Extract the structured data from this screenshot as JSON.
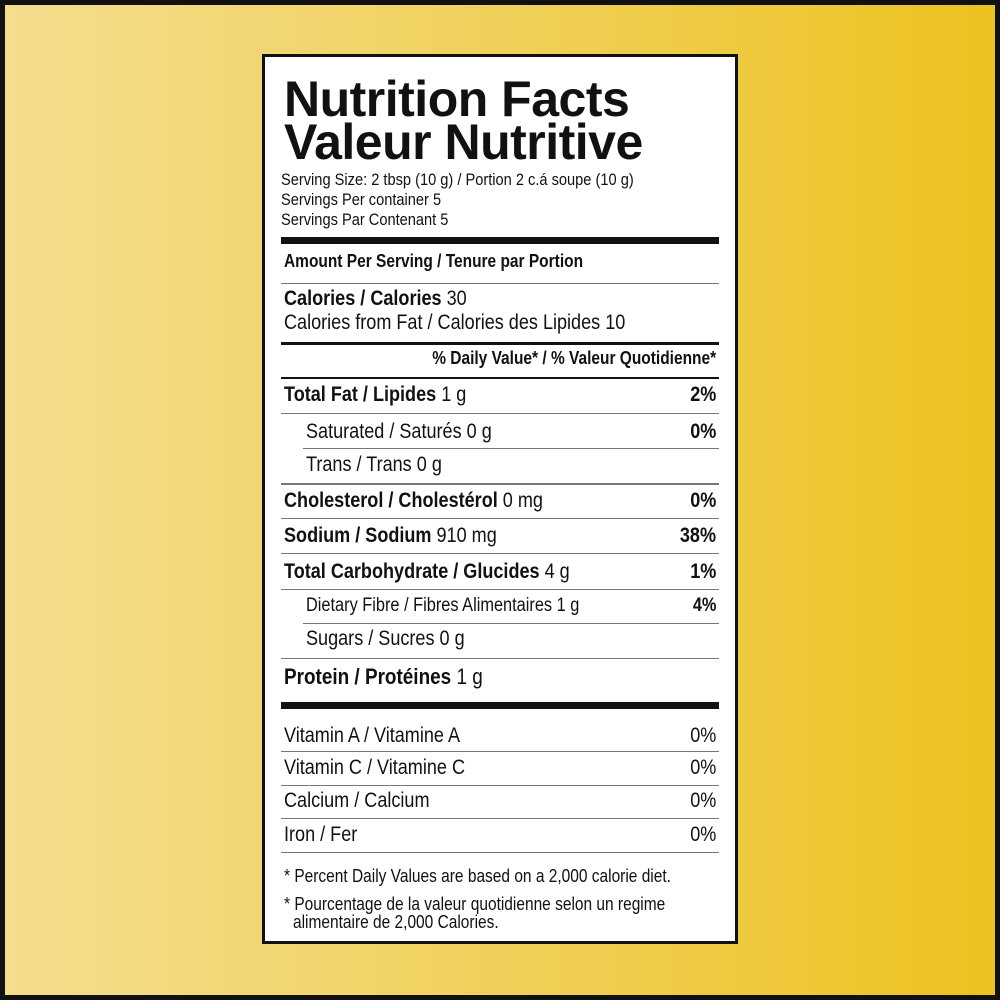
{
  "title_en": "Nutrition Facts",
  "title_fr": "Valeur Nutritive",
  "serving_size": "Serving Size: 2 tbsp (10 g) / Portion 2 c.á soupe (10 g)",
  "servings_en": "Servings Per container 5",
  "servings_fr": "Servings Par Contenant 5",
  "amount_header": "Amount Per Serving / Tenure par Portion",
  "calories": {
    "label": "Calories / Calories",
    "value": "30"
  },
  "calories_fat": "Calories from Fat / Calories des Lipides 10",
  "dv_header": "% Daily Value* / % Valeur Quotidienne*",
  "nutrients": [
    {
      "label": "Total Fat / Lipides",
      "amount": "1 g",
      "pct": "2%"
    },
    {
      "label": "Saturated / Saturés",
      "amount": "0 g",
      "pct": "0%"
    },
    {
      "label": "Trans / Trans",
      "amount": "0 g",
      "pct": ""
    },
    {
      "label": "Cholesterol / Cholestérol",
      "amount": "0 mg",
      "pct": "0%"
    },
    {
      "label": "Sodium / Sodium",
      "amount": "910 mg",
      "pct": "38%"
    },
    {
      "label": "Total Carbohydrate / Glucides",
      "amount": "4 g",
      "pct": "1%"
    },
    {
      "label": "Dietary Fibre / Fibres Alimentaires",
      "amount": "1 g",
      "pct": "4%"
    },
    {
      "label": "Sugars / Sucres",
      "amount": "0 g",
      "pct": ""
    },
    {
      "label": "Protein / Protéines",
      "amount": "1 g",
      "pct": ""
    }
  ],
  "vitamins": [
    {
      "label": "Vitamin A / Vitamine A",
      "pct": "0%"
    },
    {
      "label": "Vitamin C / Vitamine C",
      "pct": "0%"
    },
    {
      "label": "Calcium / Calcium",
      "pct": "0%"
    },
    {
      "label": "Iron / Fer",
      "pct": "0%"
    }
  ],
  "footnote_en": "* Percent Daily Values are based on a 2,000 calorie diet.",
  "footnote_fr_1": "* Pourcentage de la valeur quotidienne selon un regime",
  "footnote_fr_2": "alimentaire de 2,000 Calories.",
  "colors": {
    "background_left": "#f5dd8f",
    "background_right": "#ecc21f",
    "ink": "#111111"
  }
}
